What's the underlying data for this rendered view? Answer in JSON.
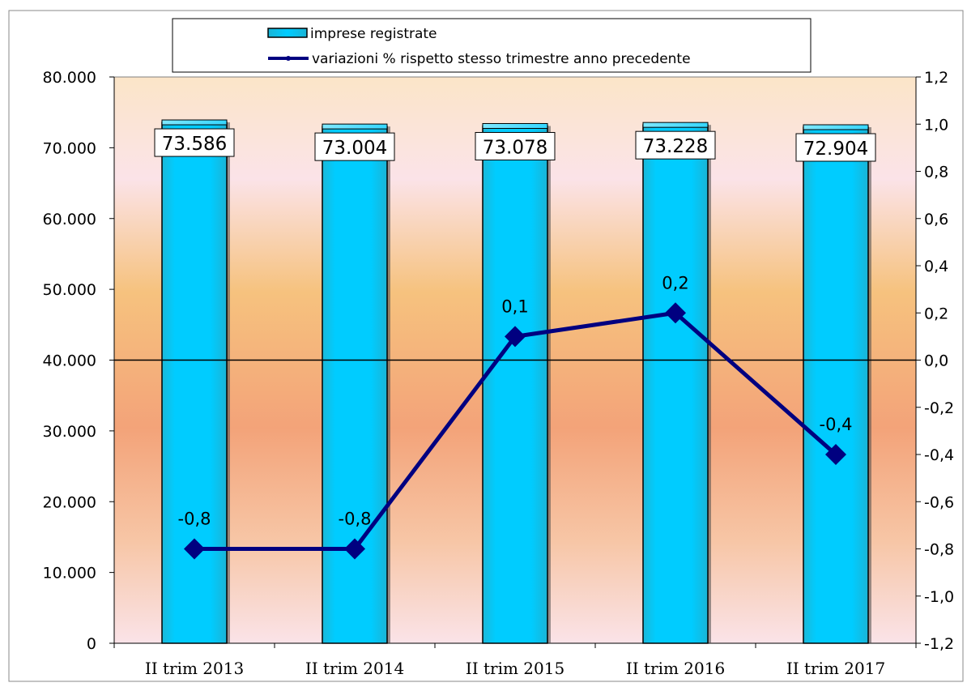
{
  "chart_data": {
    "type": "bar",
    "categories": [
      "II trim 2013",
      "II trim 2014",
      "II trim 2015",
      "II trim 2016",
      "II trim 2017"
    ],
    "series": [
      {
        "name": "imprese registrate",
        "type": "bar",
        "axis": "left",
        "values": [
          73586,
          73004,
          73078,
          73228,
          72904
        ],
        "labels": [
          "73.586",
          "73.004",
          "73.078",
          "73.228",
          "72.904"
        ],
        "color": "#00CCFF"
      },
      {
        "name": "variazioni % rispetto stesso trimestre anno precedente",
        "type": "line",
        "axis": "right",
        "values": [
          -0.8,
          -0.8,
          0.1,
          0.2,
          -0.4
        ],
        "labels": [
          "-0,8",
          "-0,8",
          "0,1",
          "0,2",
          "-0,4"
        ],
        "color": "#000080"
      }
    ],
    "y_left": {
      "range": [
        0,
        80000
      ],
      "ticks": [
        0,
        10000,
        20000,
        30000,
        40000,
        50000,
        60000,
        70000,
        80000
      ],
      "tick_labels": [
        "0",
        "10.000",
        "20.000",
        "30.000",
        "40.000",
        "50.000",
        "60.000",
        "70.000",
        "80.000"
      ]
    },
    "y_right": {
      "range": [
        -1.2,
        1.2
      ],
      "ticks": [
        -1.2,
        -1.0,
        -0.8,
        -0.6,
        -0.4,
        -0.2,
        0.0,
        0.2,
        0.4,
        0.6,
        0.8,
        1.0,
        1.2
      ],
      "tick_labels": [
        "-1,2",
        "-1,0",
        "-0,8",
        "-0,6",
        "-0,4",
        "-0,2",
        "0,0",
        "0,2",
        "0,4",
        "0,6",
        "0,8",
        "1,0",
        "1,2"
      ]
    },
    "legend": "top",
    "grid": false,
    "title": "",
    "xlabel": "",
    "ylabel": ""
  }
}
